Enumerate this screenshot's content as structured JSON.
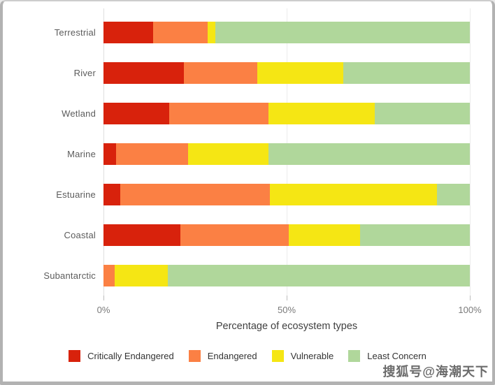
{
  "frame": {
    "background": "#ffffff",
    "border_color": "#b2b2b2"
  },
  "chart_data": {
    "type": "bar",
    "orientation": "horizontal",
    "stacked": true,
    "title": "",
    "xlabel": "Percentage of ecosystem types",
    "ylabel": "",
    "xlim": [
      0,
      100
    ],
    "x_ticks": [
      "0%",
      "50%",
      "100%"
    ],
    "x_tick_values": [
      0,
      50,
      100
    ],
    "grid": "vertical-light",
    "legend_position": "bottom",
    "categories": [
      "Terrestrial",
      "River",
      "Wetland",
      "Marine",
      "Estuarine",
      "Coastal",
      "Subantarctic"
    ],
    "series": [
      {
        "name": "Critically Endangered",
        "color": "#d8220c",
        "values": [
          13.5,
          22,
          18,
          3.5,
          4.5,
          21,
          0
        ]
      },
      {
        "name": "Endangered",
        "color": "#fb8044",
        "values": [
          15,
          20,
          27,
          19.5,
          41,
          29.5,
          3
        ]
      },
      {
        "name": "Vulnerable",
        "color": "#f5e614",
        "values": [
          2,
          23.5,
          29,
          22,
          45.5,
          19.5,
          14.5
        ]
      },
      {
        "name": "Least Concern",
        "color": "#b0d79b",
        "values": [
          69.5,
          34.5,
          26,
          55,
          9,
          30,
          82.5
        ]
      }
    ]
  },
  "watermark": {
    "text": "搜狐号@海潮天下",
    "color": "#6b6b6b"
  }
}
